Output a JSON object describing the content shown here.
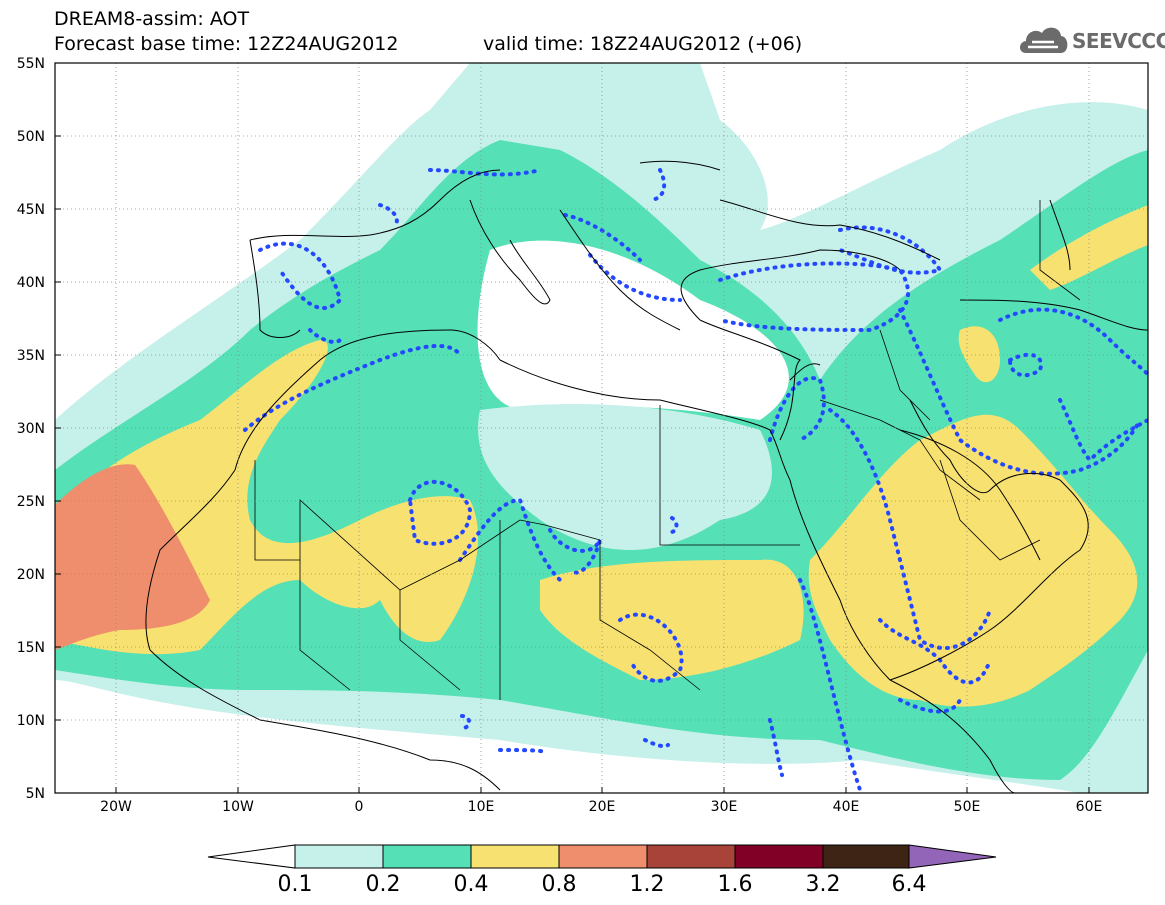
{
  "header": {
    "model_title": "DREAM8-assim: AOT",
    "base_time": "Forecast base time: 12Z24AUG2012",
    "valid_time": "valid time: 18Z24AUG2012 (+06)"
  },
  "logo": {
    "text": "SEEVCCC",
    "icon": "cloud-logo-icon"
  },
  "axes": {
    "lat_labels": [
      "55N",
      "50N",
      "45N",
      "40N",
      "35N",
      "30N",
      "25N",
      "20N",
      "15N",
      "10N",
      "5N"
    ],
    "lon_labels": [
      "20W",
      "10W",
      "0",
      "10E",
      "20E",
      "30E",
      "40E",
      "50E",
      "60E"
    ]
  },
  "colorbar": {
    "labels": [
      "0.1",
      "0.2",
      "0.4",
      "0.8",
      "1.2",
      "1.6",
      "3.2",
      "6.4"
    ],
    "colors": [
      "#ffffff",
      "#c6f0ea",
      "#55e0b6",
      "#f7e171",
      "#ee8e6c",
      "#a8433a",
      "#800026",
      "#3d2414",
      "#9365b8"
    ]
  },
  "colors": {
    "aot_0_1": "#c6f0ea",
    "aot_0_2": "#55e0b6",
    "aot_0_4": "#f7e171",
    "aot_0_8": "#ee8e6c",
    "contour": "#2448ff",
    "coast": "#000000"
  }
}
